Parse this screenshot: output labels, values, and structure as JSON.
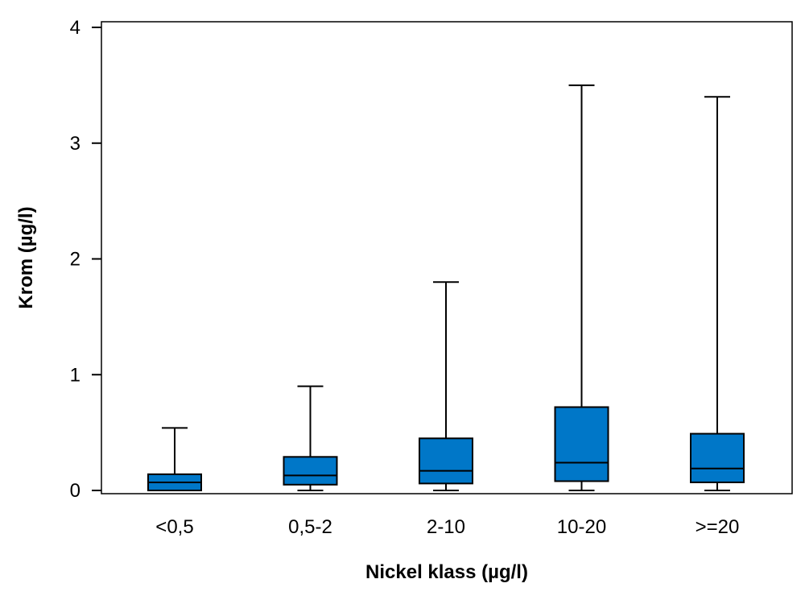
{
  "chart_data": {
    "type": "box",
    "title": "",
    "xlabel": "Nickel klass (µg/l)",
    "ylabel": "Krom (µg/l)",
    "ylim": [
      0,
      4
    ],
    "yticks": [
      0,
      1,
      2,
      3,
      4
    ],
    "box_color": "#0077C8",
    "categories": [
      "<0,5",
      "0,5-2",
      "2-10",
      "10-20",
      ">=20"
    ],
    "boxes": [
      {
        "category": "<0,5",
        "min": 0,
        "q1": 0.0,
        "median": 0.07,
        "q3": 0.14,
        "max": 0.54
      },
      {
        "category": "0,5-2",
        "min": 0,
        "q1": 0.05,
        "median": 0.13,
        "q3": 0.29,
        "max": 0.9
      },
      {
        "category": "2-10",
        "min": 0,
        "q1": 0.06,
        "median": 0.17,
        "q3": 0.45,
        "max": 1.8
      },
      {
        "category": "10-20",
        "min": 0,
        "q1": 0.08,
        "median": 0.24,
        "q3": 0.72,
        "max": 3.5
      },
      {
        "category": ">=20",
        "min": 0,
        "q1": 0.07,
        "median": 0.19,
        "q3": 0.49,
        "max": 3.4
      }
    ]
  }
}
